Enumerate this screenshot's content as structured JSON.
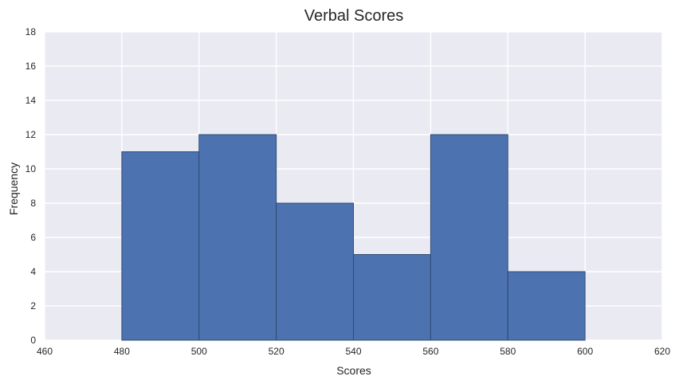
{
  "chart_data": {
    "type": "bar",
    "title": "Verbal Scores",
    "xlabel": "Scores",
    "ylabel": "Frequency",
    "xlim": [
      460,
      620
    ],
    "ylim": [
      0,
      18
    ],
    "xticks": [
      460,
      480,
      500,
      520,
      540,
      560,
      580,
      600,
      620
    ],
    "yticks": [
      0,
      2,
      4,
      6,
      8,
      10,
      12,
      14,
      16,
      18
    ],
    "bins": [
      {
        "x0": 480,
        "x1": 500,
        "value": 11
      },
      {
        "x0": 500,
        "x1": 520,
        "value": 12
      },
      {
        "x0": 520,
        "x1": 540,
        "value": 8
      },
      {
        "x0": 540,
        "x1": 560,
        "value": 5
      },
      {
        "x0": 560,
        "x1": 580,
        "value": 12
      },
      {
        "x0": 580,
        "x1": 600,
        "value": 4
      }
    ],
    "grid": true,
    "colors": {
      "plot_background": "#EAEAF2",
      "grid": "#FFFFFF",
      "bar_fill": "#4C72B0",
      "bar_edge": "#2F4B75"
    }
  }
}
